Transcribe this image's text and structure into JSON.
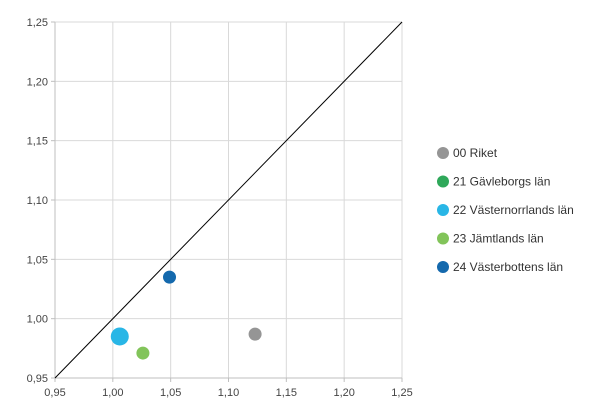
{
  "chart_data": {
    "type": "scatter",
    "title": "",
    "xlabel": "",
    "ylabel": "",
    "xlim": [
      0.95,
      1.25
    ],
    "ylim": [
      0.95,
      1.25
    ],
    "x_ticks": [
      "0,95",
      "1,00",
      "1,05",
      "1,10",
      "1,15",
      "1,20",
      "1,25"
    ],
    "y_ticks": [
      "0,95",
      "1,00",
      "1,05",
      "1,10",
      "1,15",
      "1,20",
      "1,25"
    ],
    "grid": true,
    "reference_line": "diagonal y = x",
    "legend_position": "right",
    "series": [
      {
        "name": "00 Riket",
        "color": "#959595",
        "points": [
          {
            "x": 1.123,
            "y": 0.987
          }
        ]
      },
      {
        "name": "21 Gävleborgs län",
        "color": "#2fa85a",
        "points": []
      },
      {
        "name": "22 Västernorrlands län",
        "color": "#29b6e6",
        "points": [
          {
            "x": 1.006,
            "y": 0.985
          }
        ]
      },
      {
        "name": "23 Jämtlands län",
        "color": "#82c45a",
        "points": [
          {
            "x": 1.026,
            "y": 0.971
          }
        ]
      },
      {
        "name": "24 Västerbottens län",
        "color": "#1469ad",
        "points": [
          {
            "x": 1.049,
            "y": 1.035
          }
        ]
      }
    ]
  }
}
